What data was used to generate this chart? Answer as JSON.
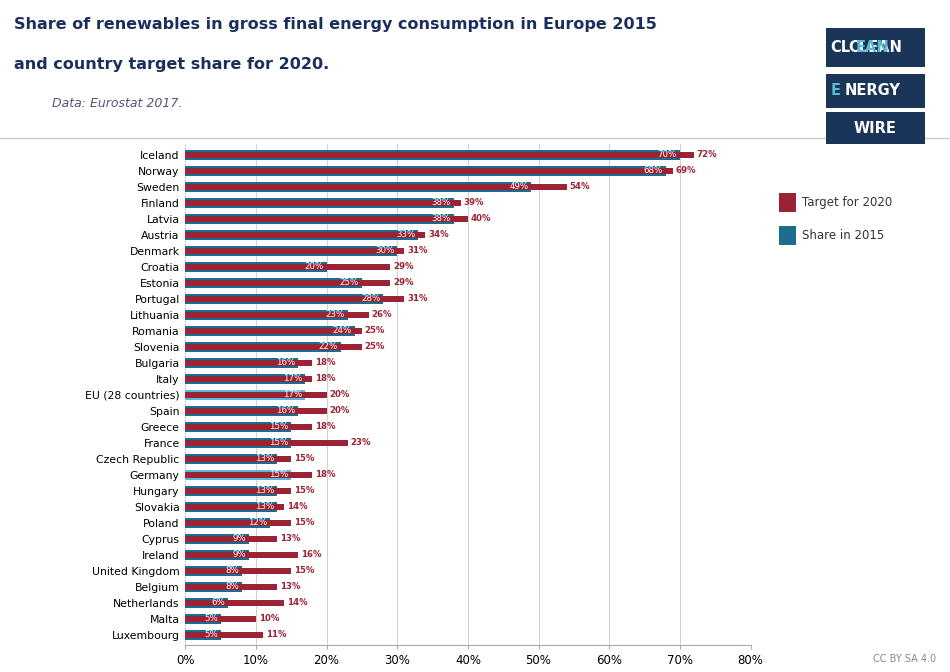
{
  "title_line1": "Share of renewables in gross final energy consumption in Europe 2015",
  "title_line2": "and country target share for 2020.",
  "subtitle": "Data: Eurostat 2017.",
  "countries": [
    "Iceland",
    "Norway",
    "Sweden",
    "Finland",
    "Latvia",
    "Austria",
    "Denmark",
    "Croatia",
    "Estonia",
    "Portugal",
    "Lithuania",
    "Romania",
    "Slovenia",
    "Bulgaria",
    "Italy",
    "EU (28 countries)",
    "Spain",
    "Greece",
    "France",
    "Czech Republic",
    "Germany",
    "Hungary",
    "Slovakia",
    "Poland",
    "Cyprus",
    "Ireland",
    "United Kingdom",
    "Belgium",
    "Netherlands",
    "Malta",
    "Luxembourg"
  ],
  "share_2015": [
    70,
    68,
    49,
    38,
    38,
    33,
    30,
    20,
    25,
    28,
    23,
    24,
    22,
    16,
    17,
    17,
    16,
    15,
    15,
    13,
    15,
    13,
    13,
    12,
    9,
    9,
    8,
    8,
    6,
    5,
    5
  ],
  "target_2020": [
    72,
    69,
    54,
    39,
    40,
    34,
    31,
    29,
    29,
    31,
    26,
    25,
    25,
    18,
    18,
    20,
    20,
    18,
    23,
    15,
    18,
    15,
    14,
    15,
    13,
    16,
    15,
    13,
    14,
    10,
    11
  ],
  "bar_color_default": "#1b6d8e",
  "bar_color_highlight_eu": "#5bb8d4",
  "bar_color_highlight_de": "#5bb8d4",
  "bar_color_target": "#9b2335",
  "highlight_countries": [
    "EU (28 countries)",
    "Germany"
  ],
  "bg_color": "#ffffff",
  "xlim": [
    0,
    80
  ],
  "xtick_positions": [
    0,
    10,
    20,
    30,
    40,
    50,
    60,
    70,
    80
  ],
  "xtick_labels": [
    "0%",
    "10%",
    "20%",
    "30%",
    "40%",
    "50%",
    "60%",
    "70%",
    "80%"
  ],
  "logo_color": "#1a3557",
  "logo_highlight": "#5bb8d4",
  "title_color": "#1a2f5e",
  "subtitle_color": "#555577"
}
